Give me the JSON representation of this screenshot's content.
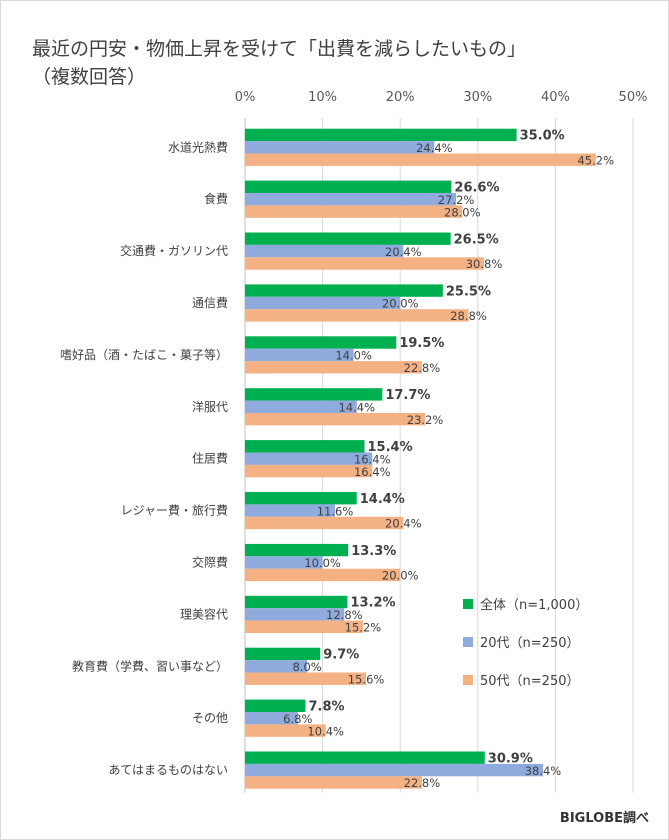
{
  "title_line1": "最近の円安・物価上昇を受けて「出費を減らしたいもの」",
  "title_line2": "（複数回答）",
  "credit": "BIGLOBE調べ",
  "chart_data": {
    "type": "bar",
    "orientation": "horizontal",
    "x_ticks": [
      "0%",
      "10%",
      "20%",
      "30%",
      "40%",
      "50%"
    ],
    "xlim": [
      0,
      50
    ],
    "grid": true,
    "legend_position": "right",
    "categories": [
      "水道光熱費",
      "食費",
      "交通費・ガソリン代",
      "通信費",
      "嗜好品（酒・たばこ・菓子等）",
      "洋服代",
      "住居費",
      "レジャー費・旅行費",
      "交際費",
      "理美容代",
      "教育費（学費、習い事など）",
      "その他",
      "あてはまるものはない"
    ],
    "series": [
      {
        "name": "全体（n=1,000）",
        "color": "#00b050",
        "values": [
          35.0,
          26.6,
          26.5,
          25.5,
          19.5,
          17.7,
          15.4,
          14.4,
          13.3,
          13.2,
          9.7,
          7.8,
          30.9
        ],
        "labels": [
          "35.0%",
          "26.6%",
          "26.5%",
          "25.5%",
          "19.5%",
          "17.7%",
          "15.4%",
          "14.4%",
          "13.3%",
          "13.2%",
          "9.7%",
          "7.8%",
          "30.9%"
        ]
      },
      {
        "name": "20代（n=250）",
        "color": "#8faadc",
        "values": [
          24.4,
          27.2,
          20.4,
          20.0,
          14.0,
          14.4,
          16.4,
          11.6,
          10.0,
          12.8,
          8.0,
          6.8,
          38.4
        ],
        "labels": [
          "24.4%",
          "27.2%",
          "20.4%",
          "20.0%",
          "14.0%",
          "14.4%",
          "16.4%",
          "11.6%",
          "10.0%",
          "12.8%",
          "8.0%",
          "6.8%",
          "38.4%"
        ]
      },
      {
        "name": "50代（n=250）",
        "color": "#f4b183",
        "values": [
          45.2,
          28.0,
          30.8,
          28.8,
          22.8,
          23.2,
          16.4,
          20.4,
          20.0,
          15.2,
          15.6,
          10.4,
          22.8
        ],
        "labels": [
          "45.2%",
          "28.0%",
          "30.8%",
          "28.8%",
          "22.8%",
          "23.2%",
          "16.4%",
          "20.4%",
          "20.0%",
          "15.2%",
          "15.6%",
          "10.4%",
          "22.8%"
        ]
      }
    ]
  }
}
